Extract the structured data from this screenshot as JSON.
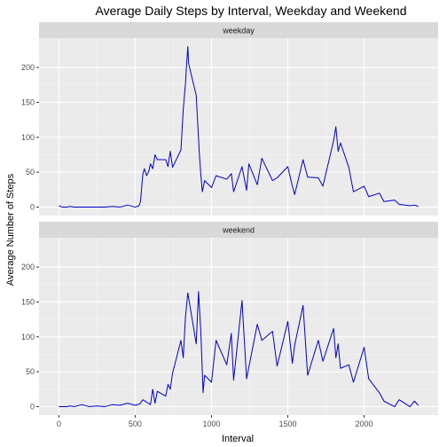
{
  "chart_data": {
    "type": "line",
    "title": "Average Daily Steps by Interval, Weekday and Weekend",
    "xlabel": "Interval",
    "ylabel": "Average Number of Steps",
    "xlim": [
      -130,
      2485
    ],
    "ylim": [
      -12,
      242
    ],
    "x_ticks": [
      0,
      500,
      1000,
      1500,
      2000
    ],
    "x_tick_labels": [
      "0",
      "500",
      "1000",
      "1500",
      "2000"
    ],
    "y_ticks": [
      0,
      50,
      100,
      150,
      200
    ],
    "y_tick_labels": [
      "0",
      "50",
      "100",
      "150",
      "200"
    ],
    "grid": true,
    "line_color": "#0000cc",
    "panel_bg": "#ebebeb",
    "strip_bg": "#d9d9d9",
    "panels": [
      {
        "label": "weekday",
        "series": {
          "x": [
            0,
            25,
            50,
            75,
            100,
            150,
            200,
            250,
            300,
            350,
            400,
            450,
            500,
            525,
            535,
            550,
            560,
            575,
            590,
            600,
            615,
            630,
            645,
            700,
            715,
            730,
            745,
            800,
            815,
            830,
            835,
            845,
            850,
            900,
            920,
            930,
            940,
            955,
            1000,
            1030,
            1100,
            1130,
            1145,
            1200,
            1230,
            1245,
            1300,
            1330,
            1400,
            1430,
            1500,
            1530,
            1545,
            1600,
            1630,
            1700,
            1730,
            1800,
            1815,
            1830,
            1845,
            1900,
            1930,
            2000,
            2030,
            2100,
            2130,
            2200,
            2230,
            2300,
            2330,
            2355
          ],
          "y": [
            2,
            0,
            0,
            1,
            0,
            0,
            0,
            0,
            0,
            1,
            0,
            3,
            0,
            2,
            8,
            47,
            55,
            45,
            52,
            62,
            55,
            75,
            68,
            68,
            58,
            80,
            57,
            82,
            140,
            178,
            198,
            230,
            206,
            160,
            78,
            47,
            22,
            38,
            28,
            45,
            40,
            48,
            22,
            58,
            24,
            62,
            32,
            70,
            38,
            42,
            58,
            30,
            18,
            68,
            43,
            42,
            30,
            95,
            115,
            80,
            92,
            57,
            22,
            30,
            15,
            20,
            8,
            10,
            4,
            2,
            3,
            1
          ]
        }
      },
      {
        "label": "weekend",
        "series": {
          "x": [
            0,
            25,
            50,
            75,
            100,
            150,
            200,
            250,
            300,
            350,
            400,
            450,
            500,
            530,
            550,
            600,
            615,
            630,
            645,
            700,
            715,
            730,
            745,
            800,
            815,
            830,
            845,
            900,
            915,
            930,
            945,
            955,
            1000,
            1030,
            1100,
            1130,
            1145,
            1200,
            1230,
            1300,
            1330,
            1400,
            1430,
            1500,
            1530,
            1545,
            1600,
            1630,
            1700,
            1730,
            1800,
            1815,
            1830,
            1845,
            1900,
            1930,
            2000,
            2030,
            2100,
            2130,
            2200,
            2230,
            2300,
            2330,
            2355
          ],
          "y": [
            0,
            0,
            0,
            1,
            0,
            3,
            0,
            1,
            0,
            3,
            2,
            5,
            2,
            4,
            10,
            3,
            25,
            5,
            22,
            15,
            32,
            25,
            48,
            95,
            70,
            130,
            163,
            90,
            165,
            108,
            20,
            45,
            35,
            95,
            60,
            105,
            38,
            152,
            40,
            118,
            95,
            108,
            58,
            122,
            62,
            88,
            145,
            45,
            95,
            65,
            112,
            70,
            90,
            55,
            60,
            35,
            85,
            40,
            20,
            8,
            0,
            10,
            0,
            8,
            2
          ]
        }
      }
    ]
  }
}
